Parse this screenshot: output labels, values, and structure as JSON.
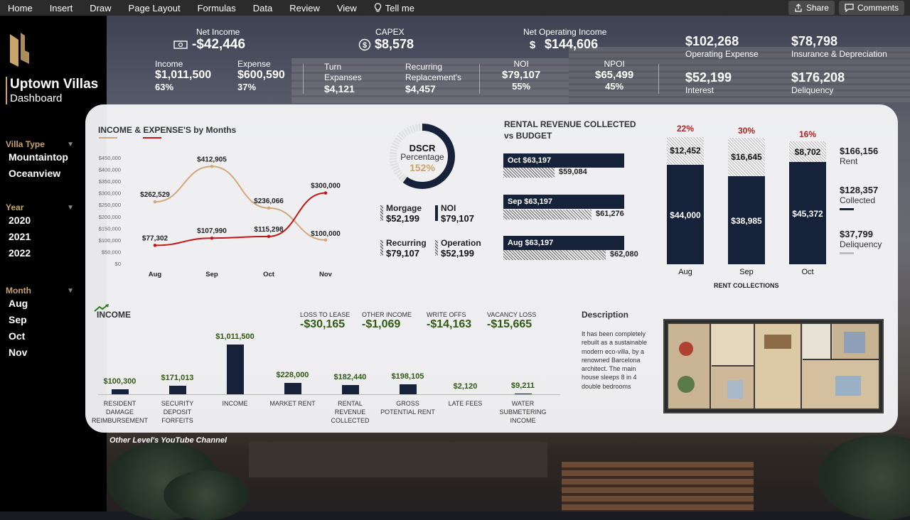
{
  "menu": {
    "items": [
      "Home",
      "Insert",
      "Draw",
      "Page Layout",
      "Formulas",
      "Data",
      "Review",
      "View"
    ],
    "tell_me": "Tell me",
    "share": "Share",
    "comments": "Comments"
  },
  "sidebar": {
    "title": "Uptown Villas",
    "subtitle": "Dashboard",
    "villa_type": {
      "label": "Villa Type",
      "items": [
        "Mountaintop",
        "Oceanview"
      ]
    },
    "year": {
      "label": "Year",
      "items": [
        "2020",
        "2021",
        "2022"
      ]
    },
    "month": {
      "label": "Month",
      "items": [
        "Aug",
        "Sep",
        "Oct",
        "Nov"
      ]
    }
  },
  "kpis": {
    "net_income": {
      "label": "Net Income",
      "value": "-$42,446"
    },
    "capex": {
      "label": "CAPEX",
      "value": "$8,578"
    },
    "noi_top": {
      "label": "Net Operating Income",
      "value": "$144,606"
    },
    "income": {
      "label": "Income",
      "value": "$1,011,500",
      "pct": "63%"
    },
    "expense": {
      "label": "Expense",
      "value": "$600,590",
      "pct": "37%"
    },
    "turn": {
      "label1": "Turn",
      "label2": "Expanses",
      "value": "$4,121"
    },
    "recurring": {
      "label1": "Recurring",
      "label2": "Replacement's",
      "value": "$4,457"
    },
    "noi": {
      "label": "NOI",
      "value": "$79,107",
      "pct": "55%"
    },
    "npoi": {
      "label": "NPOI",
      "value": "$65,499",
      "pct": "45%"
    },
    "operating_expense": {
      "value": "$102,268",
      "label": "Operating Expense"
    },
    "insurance": {
      "value": "$78,798",
      "label": "Insurance & Depreciation"
    },
    "interest": {
      "value": "$52,199",
      "label": "Interest"
    },
    "deliquency": {
      "value": "$176,208",
      "label": "Deliquency"
    }
  },
  "income_expense_chart": {
    "title": "INCOME & EXPENSE'S by Months",
    "y_ticks": [
      "$450,000",
      "$400,000",
      "$350,000",
      "$300,000",
      "$250,000",
      "$200,000",
      "$150,000",
      "$100,000",
      "$50,000",
      "$0"
    ],
    "categories": [
      "Aug",
      "Sep",
      "Oct",
      "Nov"
    ],
    "income_labels": [
      "$262,529",
      "$412,905",
      "$236,066",
      "$100,000"
    ],
    "expense_labels": [
      "$77,302",
      "$107,990",
      "$115,298",
      "$300,000"
    ]
  },
  "chart_data": [
    {
      "type": "line",
      "title": "INCOME & EXPENSE'S by Months",
      "categories": [
        "Aug",
        "Sep",
        "Oct",
        "Nov"
      ],
      "series": [
        {
          "values": [
            262529,
            412905,
            236066,
            100000
          ],
          "color": "#d1a87a"
        },
        {
          "values": [
            77302,
            107990,
            115298,
            300000
          ],
          "color": "#c01818"
        }
      ],
      "ylim": [
        0,
        450000
      ]
    },
    {
      "type": "bar",
      "title": "RENTAL REVENUE COLLECTED vs BUDGET",
      "categories": [
        "Oct",
        "Sep",
        "Aug"
      ],
      "series": [
        {
          "values": [
            63197,
            63197,
            63197
          ]
        },
        {
          "values": [
            59084,
            61276,
            62080
          ]
        }
      ]
    },
    {
      "type": "bar",
      "title": "RENT COLLECTIONS",
      "categories": [
        "Aug",
        "Sep",
        "Oct"
      ],
      "series": [
        {
          "values": [
            44000,
            38985,
            45372
          ],
          "color": "#16213a"
        },
        {
          "values": [
            12452,
            16645,
            8702
          ]
        }
      ],
      "percent_labels": [
        "22%",
        "30%",
        "16%"
      ]
    },
    {
      "type": "bar",
      "title": "INCOME",
      "categories": [
        "RESIDENT DAMAGE REIMBURSEMENT",
        "SECURITY DEPOSIT FORFEITS",
        "INCOME",
        "MARKET RENT",
        "RENTAL REVENUE COLLECTED",
        "GROSS POTENTIAL RENT",
        "LATE FEES",
        "WATER SUBMETERING INCOME"
      ],
      "values": [
        100300,
        171013,
        1011500,
        228000,
        182440,
        198105,
        2120,
        9211
      ]
    }
  ],
  "dscr": {
    "title": "DSCR",
    "subtitle": "Percentage",
    "value": "152%",
    "fraction": 0.6,
    "items": [
      {
        "label": "Morgage",
        "value": "$52,199"
      },
      {
        "label": "NOI",
        "value": "$79,107"
      },
      {
        "label": "Recurring",
        "value": "$79,107"
      },
      {
        "label": "Operation",
        "value": "$52,199"
      }
    ]
  },
  "rental_revenue": {
    "title1": "RENTAL REVENUE COLLECTED",
    "title2": "vs BUDGET",
    "rows": [
      {
        "budget": "Oct $63,197",
        "actual": "$59,084"
      },
      {
        "budget": "Sep $63,197",
        "actual": "$61,276"
      },
      {
        "budget": "Aug $63,197",
        "actual": "$62,080"
      }
    ]
  },
  "rent_collections": {
    "title": "RENT COLLECTIONS",
    "cols": [
      {
        "month": "Aug",
        "pct": "22%",
        "top": "$12,452",
        "inner": "$44,000"
      },
      {
        "month": "Sep",
        "pct": "30%",
        "top": "$16,645",
        "inner": "$38,985"
      },
      {
        "month": "Oct",
        "pct": "16%",
        "top": "$8,702",
        "inner": "$45,372"
      }
    ],
    "legend": [
      {
        "value": "$166,156",
        "label": "Rent"
      },
      {
        "value": "$128,357",
        "label": "Collected"
      },
      {
        "value": "$37,799",
        "label": "Deliquency"
      }
    ]
  },
  "income_section": {
    "title": "INCOME",
    "minis": [
      {
        "label": "LOSS TO LEASE",
        "value": "-$30,165"
      },
      {
        "label": "OTHER INCOME",
        "value": "-$1,069"
      },
      {
        "label": "WRITE OFFS",
        "value": "-$14,163"
      },
      {
        "label": "VACANCY LOSS",
        "value": "-$15,665"
      }
    ],
    "bars": [
      {
        "value": "$100,300",
        "cat": "RESIDENT DAMAGE REIMBURSEMENT"
      },
      {
        "value": "$171,013",
        "cat": "SECURITY DEPOSIT FORFEITS"
      },
      {
        "value": "$1,011,500",
        "cat": "INCOME"
      },
      {
        "value": "$228,000",
        "cat": "MARKET RENT"
      },
      {
        "value": "$182,440",
        "cat": "RENTAL REVENUE COLLECTED"
      },
      {
        "value": "$198,105",
        "cat": "GROSS POTENTIAL RENT"
      },
      {
        "value": "$2,120",
        "cat": "LATE FEES"
      },
      {
        "value": "$9,211",
        "cat": "WATER SUBMETERING INCOME"
      }
    ]
  },
  "description": {
    "title": "Description",
    "body": "It has been completely rebuilt as a sustainable modern eco-villa, by a renowned Barcelona architect. The main house sleeps 8 in 4 double bedrooms"
  },
  "footer": "Other Level's YouTube Channel",
  "colors": {
    "accent": "#c9a46a",
    "navy": "#16213a",
    "income_line": "#d1a87a",
    "expense_line": "#c01818",
    "green": "#2f5a12"
  }
}
